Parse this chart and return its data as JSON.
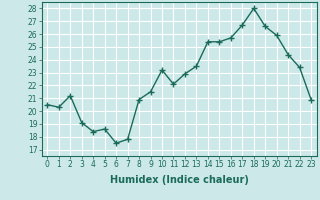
{
  "x": [
    0,
    1,
    2,
    3,
    4,
    5,
    6,
    7,
    8,
    9,
    10,
    11,
    12,
    13,
    14,
    15,
    16,
    17,
    18,
    19,
    20,
    21,
    22,
    23
  ],
  "y": [
    20.5,
    20.3,
    21.2,
    19.1,
    18.4,
    18.6,
    17.5,
    17.8,
    20.9,
    21.5,
    23.2,
    22.1,
    22.9,
    23.5,
    25.4,
    25.4,
    25.7,
    26.7,
    28.0,
    26.6,
    25.9,
    24.4,
    23.4,
    20.9
  ],
  "line_color": "#1a6b5a",
  "marker": "+",
  "marker_size": 4,
  "marker_linewidth": 1.0,
  "bg_color": "#cce8e8",
  "grid_color": "#ffffff",
  "xlabel": "Humidex (Indice chaleur)",
  "ylabel_ticks": [
    17,
    18,
    19,
    20,
    21,
    22,
    23,
    24,
    25,
    26,
    27,
    28
  ],
  "ylim": [
    16.5,
    28.5
  ],
  "xlim": [
    -0.5,
    23.5
  ],
  "xlabel_color": "#1a6b5a",
  "tick_color": "#1a6b5a",
  "axis_color": "#1a6b5a",
  "tick_fontsize": 5.5,
  "xlabel_fontsize": 7.0,
  "linewidth": 1.0
}
